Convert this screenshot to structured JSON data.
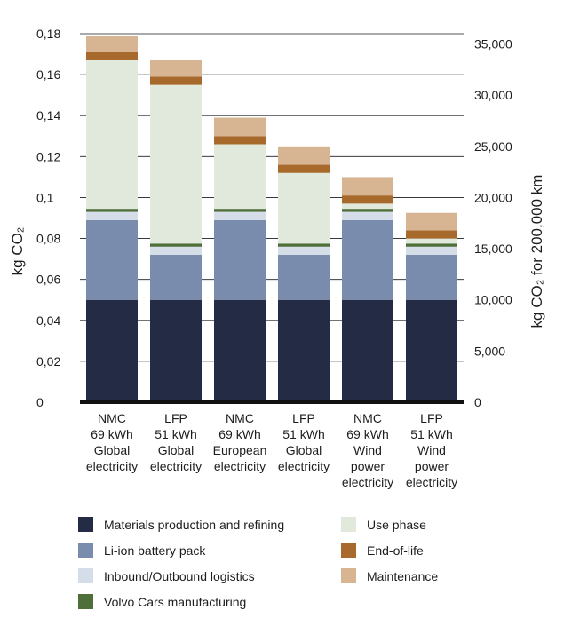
{
  "chart_data": {
    "type": "bar",
    "stacked": true,
    "categories": [
      [
        "NMC",
        "69 kWh",
        "Global",
        "electricity"
      ],
      [
        "LFP",
        "51 kWh",
        "Global",
        "electricity"
      ],
      [
        "NMC",
        "69 kWh",
        "European",
        "electricity"
      ],
      [
        "LFP",
        "51 kWh",
        "Global",
        "electricity"
      ],
      [
        "NMC",
        "69 kWh",
        "Wind",
        "power",
        "electricity"
      ],
      [
        "LFP",
        "51 kWh",
        "Wind",
        "power",
        "electricity"
      ]
    ],
    "series": [
      {
        "name": "Materials production and refining",
        "color": "#232b45",
        "values": [
          0.05,
          0.05,
          0.05,
          0.05,
          0.05,
          0.05
        ]
      },
      {
        "name": "Li-ion battery pack",
        "color": "#7a8cae",
        "values": [
          0.039,
          0.022,
          0.039,
          0.022,
          0.039,
          0.022
        ]
      },
      {
        "name": "Inbound/Outbound logistics",
        "color": "#d5dde8",
        "values": [
          0.004,
          0.004,
          0.004,
          0.004,
          0.004,
          0.004
        ]
      },
      {
        "name": "Volvo Cars manufacturing",
        "color": "#4f6f3a",
        "values": [
          0.0015,
          0.0015,
          0.0015,
          0.0015,
          0.0015,
          0.0015
        ]
      },
      {
        "name": "Use phase",
        "color": "#e1e9dc",
        "values": [
          0.0725,
          0.0775,
          0.0315,
          0.0345,
          0.0025,
          0.0025
        ]
      },
      {
        "name": "End-of-life",
        "color": "#a8692c",
        "values": [
          0.004,
          0.004,
          0.004,
          0.004,
          0.004,
          0.004
        ]
      },
      {
        "name": "Maintenance",
        "color": "#d7b592",
        "values": [
          0.008,
          0.008,
          0.009,
          0.009,
          0.009,
          0.0085
        ]
      }
    ],
    "y_left": {
      "label": "kg CO₂",
      "ylim": [
        0,
        0.18
      ],
      "ticks": [
        "0",
        "0,02",
        "0,04",
        "0,06",
        "0,08",
        "0,1",
        "0,12",
        "0,14",
        "0,16",
        "0,18"
      ]
    },
    "y_right": {
      "label": "kg CO₂ for 200,000 km",
      "ylim": [
        0,
        36000
      ],
      "ticks": [
        "0",
        "5,000",
        "10,000",
        "15,000",
        "20,000",
        "25,000",
        "30,000",
        "35,000"
      ]
    },
    "grid": true,
    "legend_placement": "bottom"
  },
  "legend": {
    "items": [
      {
        "label": "Materials production and refining",
        "color": "#232b45"
      },
      {
        "label": "Li-ion battery pack",
        "color": "#7a8cae"
      },
      {
        "label": "Inbound/Outbound logistics",
        "color": "#d5dde8"
      },
      {
        "label": "Volvo Cars manufacturing",
        "color": "#4f6f3a"
      },
      {
        "label": "Use phase",
        "color": "#e1e9dc"
      },
      {
        "label": "End-of-life",
        "color": "#a8692c"
      },
      {
        "label": "Maintenance",
        "color": "#d7b592"
      }
    ]
  }
}
